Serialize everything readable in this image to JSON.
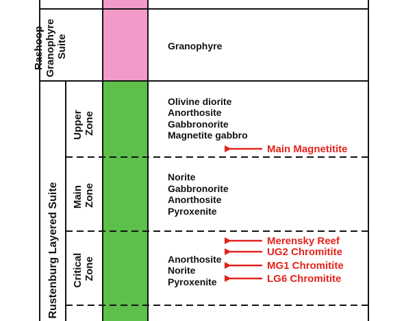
{
  "colors": {
    "granophyre": "#f29ac8",
    "layered": "#5cc04a",
    "line": "#111111",
    "marker": "#e3231b"
  },
  "suites": {
    "rashoop": {
      "label_lines": [
        "Rashoop",
        "Granophyre",
        "Suite"
      ]
    },
    "rustenburg": {
      "label": "Rustenburg Layered Suite"
    }
  },
  "zones": {
    "upper": {
      "label_lines": [
        "Upper",
        "Zone"
      ]
    },
    "main": {
      "label_lines": [
        "Main",
        "Zone"
      ]
    },
    "critical": {
      "label_lines": [
        "Critical",
        "Zone"
      ]
    }
  },
  "rocks": {
    "rashoop": [
      "Granophyre"
    ],
    "upper": [
      "Olivine diorite",
      "Anorthosite",
      "Gabbronorite",
      "Magnetite gabbro"
    ],
    "main": [
      "Norite",
      "Gabbronorite",
      "Anorthosite",
      "Pyroxenite"
    ],
    "critical": [
      "Anorthosite",
      "Norite",
      "Pyroxenite"
    ]
  },
  "markers": {
    "main_magnetitite": "Main Magnetitite",
    "merensky_reef": "Merensky Reef",
    "ug2_chromitite": "UG2 Chromitite",
    "mg1_chromitite": "MG1 Chromitite",
    "lg6_chromitite": "LG6 Chromitite"
  }
}
